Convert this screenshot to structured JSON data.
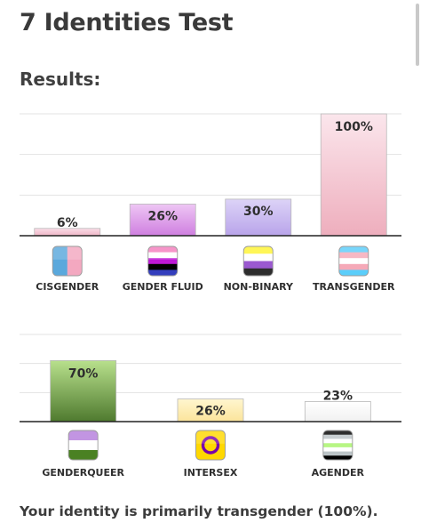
{
  "page": {
    "title": "7 Identities Test",
    "subtitle": "Results:",
    "summary": "Your identity is primarily transgender (100%)."
  },
  "chart_data": [
    {
      "type": "bar",
      "ylim": [
        0,
        100
      ],
      "grid": true,
      "categories": [
        "CISGENDER",
        "GENDER FLUID",
        "NON-BINARY",
        "TRANSGENDER"
      ],
      "values": [
        6,
        26,
        30,
        100
      ],
      "data_labels": [
        "6%",
        "26%",
        "30%",
        "100%"
      ],
      "colors": [
        [
          "#f9dce6",
          "#f0b7c8"
        ],
        [
          "#eec6f4",
          "#cf7fe0"
        ],
        [
          "#dcd3f7",
          "#b9a4ea"
        ],
        [
          "#fbe6ec",
          "#eeaebd"
        ]
      ],
      "icons": [
        {
          "name": "cisgender-flag-icon",
          "colors": [
            "#5aa8dc",
            "#f3a8c0"
          ],
          "layout": "vertical"
        },
        {
          "name": "gender-fluid-flag-icon",
          "colors": [
            "#f47ebe",
            "#ffffff",
            "#be18d6",
            "#000000",
            "#333ebd"
          ],
          "layout": "horizontal"
        },
        {
          "name": "non-binary-flag-icon",
          "colors": [
            "#fff433",
            "#ffffff",
            "#9b59d0",
            "#2d2d2d"
          ],
          "layout": "horizontal"
        },
        {
          "name": "transgender-flag-icon",
          "colors": [
            "#5bcefa",
            "#f5a9b8",
            "#ffffff",
            "#f5a9b8",
            "#5bcefa"
          ],
          "layout": "horizontal"
        }
      ]
    },
    {
      "type": "bar",
      "ylim": [
        0,
        100
      ],
      "grid": true,
      "categories": [
        "GENDERQUEER",
        "INTERSEX",
        "AGENDER"
      ],
      "values": [
        70,
        26,
        23
      ],
      "data_labels": [
        "70%",
        "26%",
        "23%"
      ],
      "colors": [
        [
          "#b8e08c",
          "#4f7a2f"
        ],
        [
          "#fff6cf",
          "#fbe49b"
        ],
        [
          "#ffffff",
          "#f1f1f1"
        ]
      ],
      "icons": [
        {
          "name": "genderqueer-flag-icon",
          "colors": [
            "#b57edc",
            "#ffffff",
            "#4a8123"
          ],
          "layout": "horizontal"
        },
        {
          "name": "intersex-flag-icon",
          "colors": [
            "#ffd800",
            "#7902aa"
          ],
          "layout": "ring"
        },
        {
          "name": "agender-flag-icon",
          "colors": [
            "#000000",
            "#bcc4c7",
            "#ffffff",
            "#b7f684",
            "#ffffff",
            "#bcc4c7",
            "#000000"
          ],
          "layout": "horizontal"
        }
      ]
    }
  ]
}
